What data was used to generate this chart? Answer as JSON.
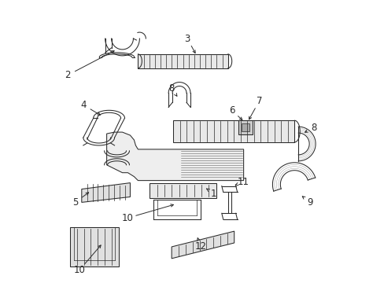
{
  "background_color": "#ffffff",
  "fig_width": 4.89,
  "fig_height": 3.6,
  "dpi": 100,
  "line_color": "#2a2a2a",
  "lw": 0.75,
  "parts": {
    "label_fontsize": 8.5
  }
}
